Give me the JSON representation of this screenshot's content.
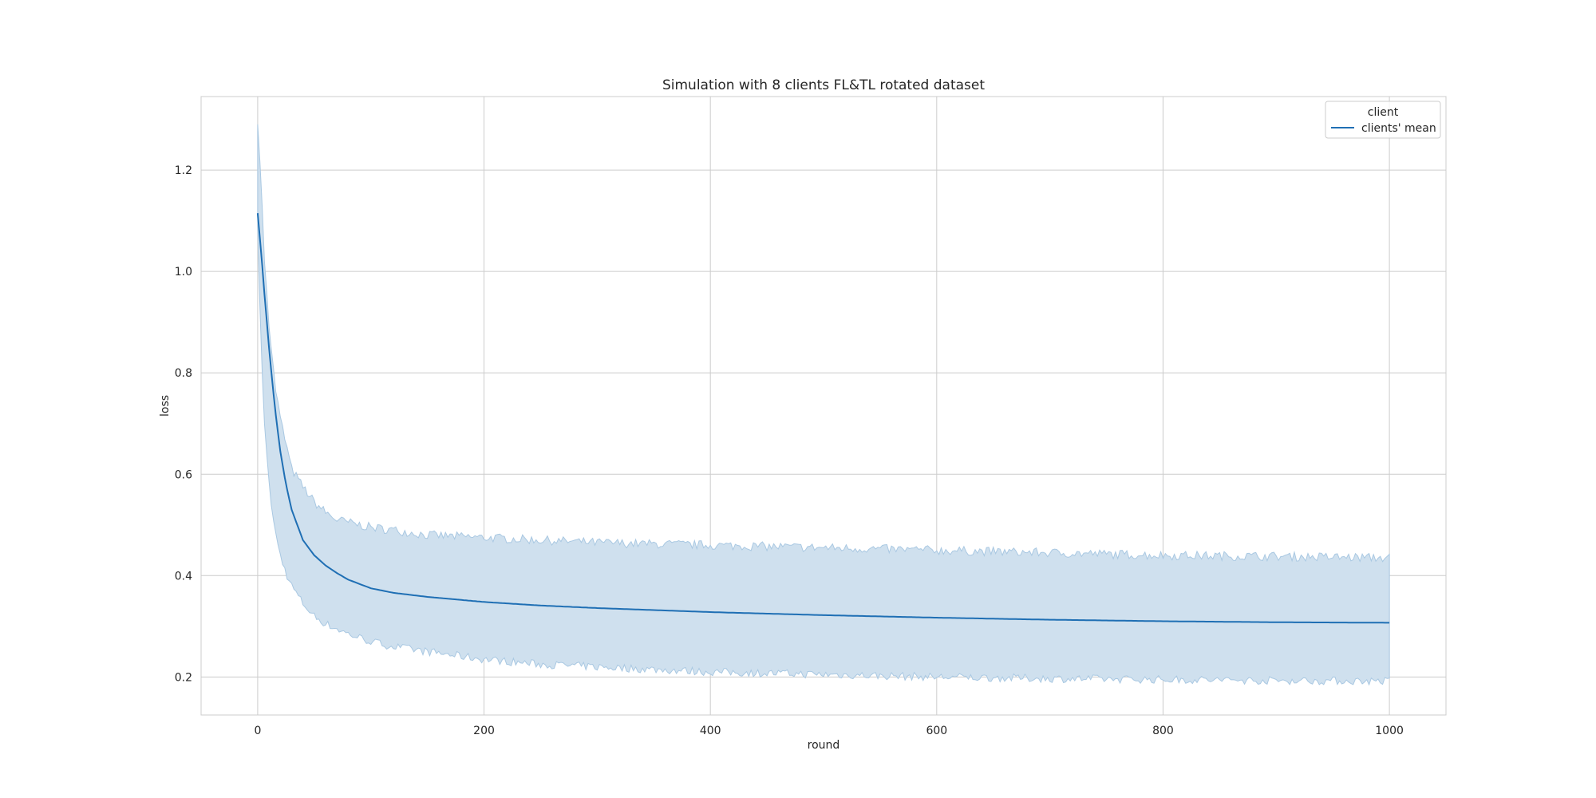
{
  "chart_data": {
    "type": "line",
    "title": "Simulation with 8 clients FL&TL rotated dataset",
    "xlabel": "round",
    "ylabel": "loss",
    "xlim": [
      -50,
      1050
    ],
    "ylim": [
      0.125,
      1.345
    ],
    "xticks": [
      0,
      200,
      400,
      600,
      800,
      1000
    ],
    "yticks": [
      0.2,
      0.4,
      0.6,
      0.8,
      1.0,
      1.2
    ],
    "grid": true,
    "legend": {
      "title": "client",
      "position": "top-right"
    },
    "series": [
      {
        "name": "clients' mean",
        "color": "#1f6fb4",
        "band_color": "#cfe0ee",
        "band_stroke": "#a9c8e2",
        "x": [
          0,
          3,
          6,
          10,
          15,
          20,
          25,
          30,
          40,
          50,
          60,
          70,
          80,
          100,
          120,
          150,
          200,
          250,
          300,
          400,
          500,
          600,
          700,
          800,
          900,
          1000
        ],
        "mean": [
          1.115,
          1.04,
          0.955,
          0.85,
          0.735,
          0.645,
          0.58,
          0.53,
          0.47,
          0.44,
          0.42,
          0.405,
          0.392,
          0.375,
          0.366,
          0.358,
          0.348,
          0.341,
          0.336,
          0.328,
          0.322,
          0.317,
          0.313,
          0.31,
          0.308,
          0.307
        ],
        "upper": [
          1.29,
          1.18,
          1.02,
          0.9,
          0.78,
          0.71,
          0.66,
          0.61,
          0.575,
          0.545,
          0.525,
          0.51,
          0.505,
          0.495,
          0.49,
          0.48,
          0.475,
          0.47,
          0.465,
          0.46,
          0.455,
          0.45,
          0.445,
          0.44,
          0.438,
          0.435
        ],
        "lower": [
          1.09,
          0.85,
          0.7,
          0.58,
          0.49,
          0.44,
          0.405,
          0.38,
          0.345,
          0.32,
          0.305,
          0.295,
          0.285,
          0.27,
          0.26,
          0.25,
          0.235,
          0.225,
          0.22,
          0.21,
          0.205,
          0.2,
          0.197,
          0.195,
          0.193,
          0.192
        ]
      }
    ]
  }
}
